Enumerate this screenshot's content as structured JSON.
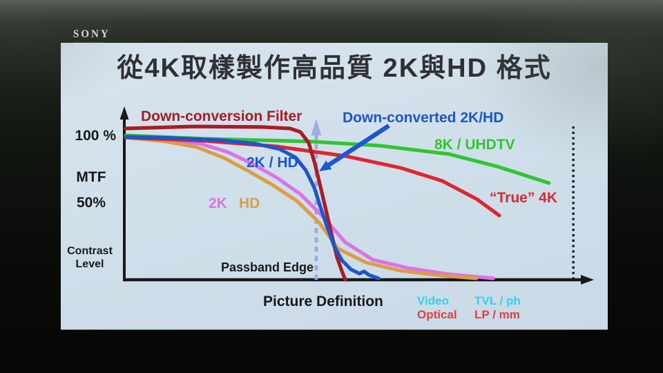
{
  "branding": {
    "logo": "SONY",
    "tagline": "make.believe"
  },
  "chart_data": {
    "type": "line",
    "title": "從4K取樣製作高品質 2K與HD 格式",
    "xlabel": "Picture Definition",
    "ylabel": "MTF",
    "ylabel2": "Contrast Level",
    "yticks": [
      {
        "value": 100,
        "label": "100 %"
      },
      {
        "value": 50,
        "label": "50%"
      }
    ],
    "x_range": [
      0,
      100
    ],
    "y_range": [
      0,
      110
    ],
    "grid": false,
    "x_unit_legend": [
      {
        "system": "Video",
        "unit": "TVL / ph",
        "color": "#35d0e6"
      },
      {
        "system": "Optical",
        "unit": "LP / mm",
        "color": "#e04040"
      }
    ],
    "series": [
      {
        "name": "2k",
        "label": "2K",
        "color": "#d973e6",
        "points": [
          [
            0,
            99.8
          ],
          [
            9.3,
            97.6
          ],
          [
            15.9,
            94.7
          ],
          [
            21.8,
            88.9
          ],
          [
            27,
            80.8
          ],
          [
            32.2,
            71.2
          ],
          [
            37.3,
            59.6
          ],
          [
            42.2,
            43.8
          ],
          [
            46.9,
            26
          ],
          [
            52.8,
            13.9
          ],
          [
            60.2,
            8.2
          ],
          [
            69,
            3.8
          ],
          [
            78.5,
            1
          ]
        ]
      },
      {
        "name": "hd",
        "label": "HD",
        "color": "#dd9c45",
        "points": [
          [
            0,
            99
          ],
          [
            8.6,
            96.2
          ],
          [
            15.2,
            92.3
          ],
          [
            21.1,
            84.6
          ],
          [
            26.3,
            75.5
          ],
          [
            31.4,
            65.9
          ],
          [
            36.6,
            54.8
          ],
          [
            41.3,
            39.9
          ],
          [
            45.4,
            21.6
          ],
          [
            51.3,
            12
          ],
          [
            58.7,
            6.3
          ],
          [
            67.6,
            2.9
          ],
          [
            74.9,
            1
          ]
        ]
      },
      {
        "name": "8k-uhdtv",
        "label": "8K / UHDTV",
        "color": "#32c433",
        "points": [
          [
            0,
            100.5
          ],
          [
            17.4,
            98.1
          ],
          [
            39.5,
            96.2
          ],
          [
            54.3,
            93.3
          ],
          [
            69,
            87.5
          ],
          [
            79.4,
            78.8
          ],
          [
            90.4,
            67.3
          ]
        ]
      },
      {
        "name": "true-4k",
        "label": "“True” 4K",
        "color": "#e02531",
        "points": [
          [
            0,
            99
          ],
          [
            17.4,
            96.6
          ],
          [
            32.2,
            92.8
          ],
          [
            46.9,
            86.1
          ],
          [
            58.7,
            77.9
          ],
          [
            67.6,
            68.8
          ],
          [
            74.9,
            56.3
          ],
          [
            79.8,
            44.7
          ]
        ]
      },
      {
        "name": "down-conversion-filter",
        "label": "Down-conversion Filter",
        "color": "#a81c26",
        "points": [
          [
            0,
            105.3
          ],
          [
            14.5,
            106.7
          ],
          [
            29.2,
            106.3
          ],
          [
            35.1,
            105.3
          ],
          [
            37.3,
            102.9
          ],
          [
            39.1,
            95.2
          ],
          [
            40.4,
            80.8
          ],
          [
            41.6,
            64.9
          ],
          [
            42.8,
            48.1
          ],
          [
            44,
            31.3
          ],
          [
            45.1,
            15.9
          ],
          [
            46.2,
            5.8
          ],
          [
            46.9,
            0
          ]
        ]
      },
      {
        "name": "down-converted-2k-hd",
        "label": "Down-converted 2K/HD",
        "label_short": "2K / HD",
        "color": "#1d55cc",
        "points": [
          [
            0,
            99.5
          ],
          [
            10,
            98.6
          ],
          [
            20.4,
            97.1
          ],
          [
            27.7,
            94.7
          ],
          [
            32.9,
            90.9
          ],
          [
            36.3,
            85.1
          ],
          [
            38.5,
            76
          ],
          [
            40.3,
            63.9
          ],
          [
            41.7,
            49.5
          ],
          [
            43.1,
            36.1
          ],
          [
            44.5,
            23.6
          ],
          [
            46.2,
            13.5
          ],
          [
            48.1,
            7.2
          ],
          [
            49.9,
            4.3
          ],
          [
            50.9,
            5.8
          ],
          [
            51.9,
            3.4
          ],
          [
            54,
            1
          ]
        ]
      }
    ],
    "annotations": {
      "passband_edge": {
        "label": "Passband Edge",
        "x": 40.7,
        "color": "#9aaade"
      },
      "right_boundary": {
        "x": 95.6,
        "style": "dotted"
      },
      "callout_arrow": {
        "from": [
          56.2,
          107.2
        ],
        "to": [
          41.3,
          75.5
        ],
        "color": "#1e55d2"
      }
    }
  }
}
